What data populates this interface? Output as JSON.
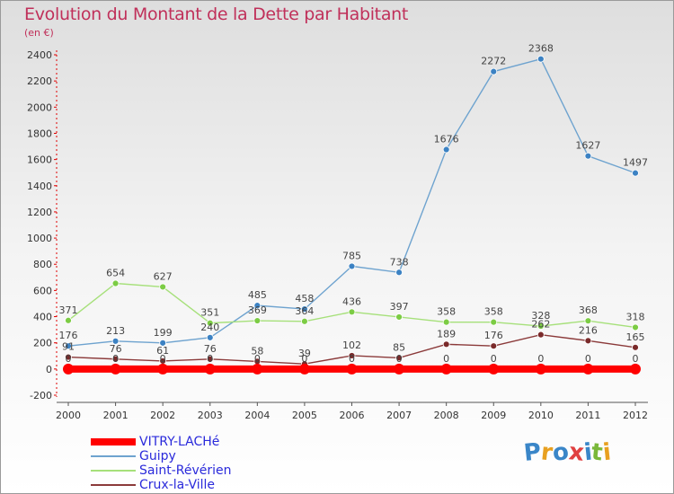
{
  "chart_data": {
    "type": "line",
    "title": "Evolution du Montant de la Dette par Habitant",
    "subtitle": "(en €)",
    "xlabel": "",
    "ylabel": "",
    "x": [
      2000,
      2001,
      2002,
      2003,
      2004,
      2005,
      2006,
      2007,
      2008,
      2009,
      2010,
      2011,
      2012
    ],
    "ylim": [
      -200,
      2400
    ],
    "yticks": [
      -200,
      0,
      200,
      400,
      600,
      800,
      1000,
      1200,
      1400,
      1600,
      1800,
      2000,
      2200,
      2400
    ],
    "legend_position": "bottom-left",
    "series": [
      {
        "name": "VITRY-LACHé",
        "color": "#ff0000",
        "marker": "#ff0000",
        "values": [
          0,
          0,
          0,
          0,
          0,
          0,
          0,
          0,
          0,
          0,
          0,
          0,
          0
        ],
        "labels": [
          "0",
          "0",
          "0",
          "0",
          "0",
          "0",
          "0",
          "0",
          "0",
          "0",
          "0",
          "0",
          "0"
        ]
      },
      {
        "name": "Guipy",
        "color": "#6ea3cf",
        "marker": "#3c82c3",
        "values": [
          176,
          213,
          199,
          240,
          485,
          458,
          785,
          738,
          1676,
          2272,
          2368,
          1627,
          1497
        ],
        "labels": [
          "176",
          "213",
          "199",
          "240",
          "485",
          "458",
          "785",
          "738",
          "1676",
          "2272",
          "2368",
          "1627",
          "1497"
        ]
      },
      {
        "name": "Saint-Révérien",
        "color": "#a6e07a",
        "marker": "#7ccc44",
        "values": [
          371,
          654,
          627,
          351,
          369,
          364,
          436,
          397,
          358,
          358,
          328,
          368,
          318
        ],
        "labels": [
          "371",
          "654",
          "627",
          "351",
          "369",
          "364",
          "436",
          "397",
          "358",
          "358",
          "328",
          "368",
          "318"
        ]
      },
      {
        "name": "Crux-la-Ville",
        "color": "#8b3a3a",
        "marker": "#7a2a2a",
        "values": [
          91,
          76,
          61,
          76,
          58,
          39,
          102,
          85,
          189,
          176,
          262,
          216,
          165
        ],
        "labels": [
          "91",
          "76",
          "61",
          "76",
          "58",
          "39",
          "102",
          "85",
          "189",
          "176",
          "262",
          "216",
          "165"
        ]
      }
    ]
  },
  "logo": {
    "text": "Proxiti",
    "colors": [
      "#3a86c8",
      "#e8a020",
      "#3a86c8",
      "#e04040",
      "#3a86c8",
      "#7ab83a",
      "#e8a020"
    ]
  }
}
